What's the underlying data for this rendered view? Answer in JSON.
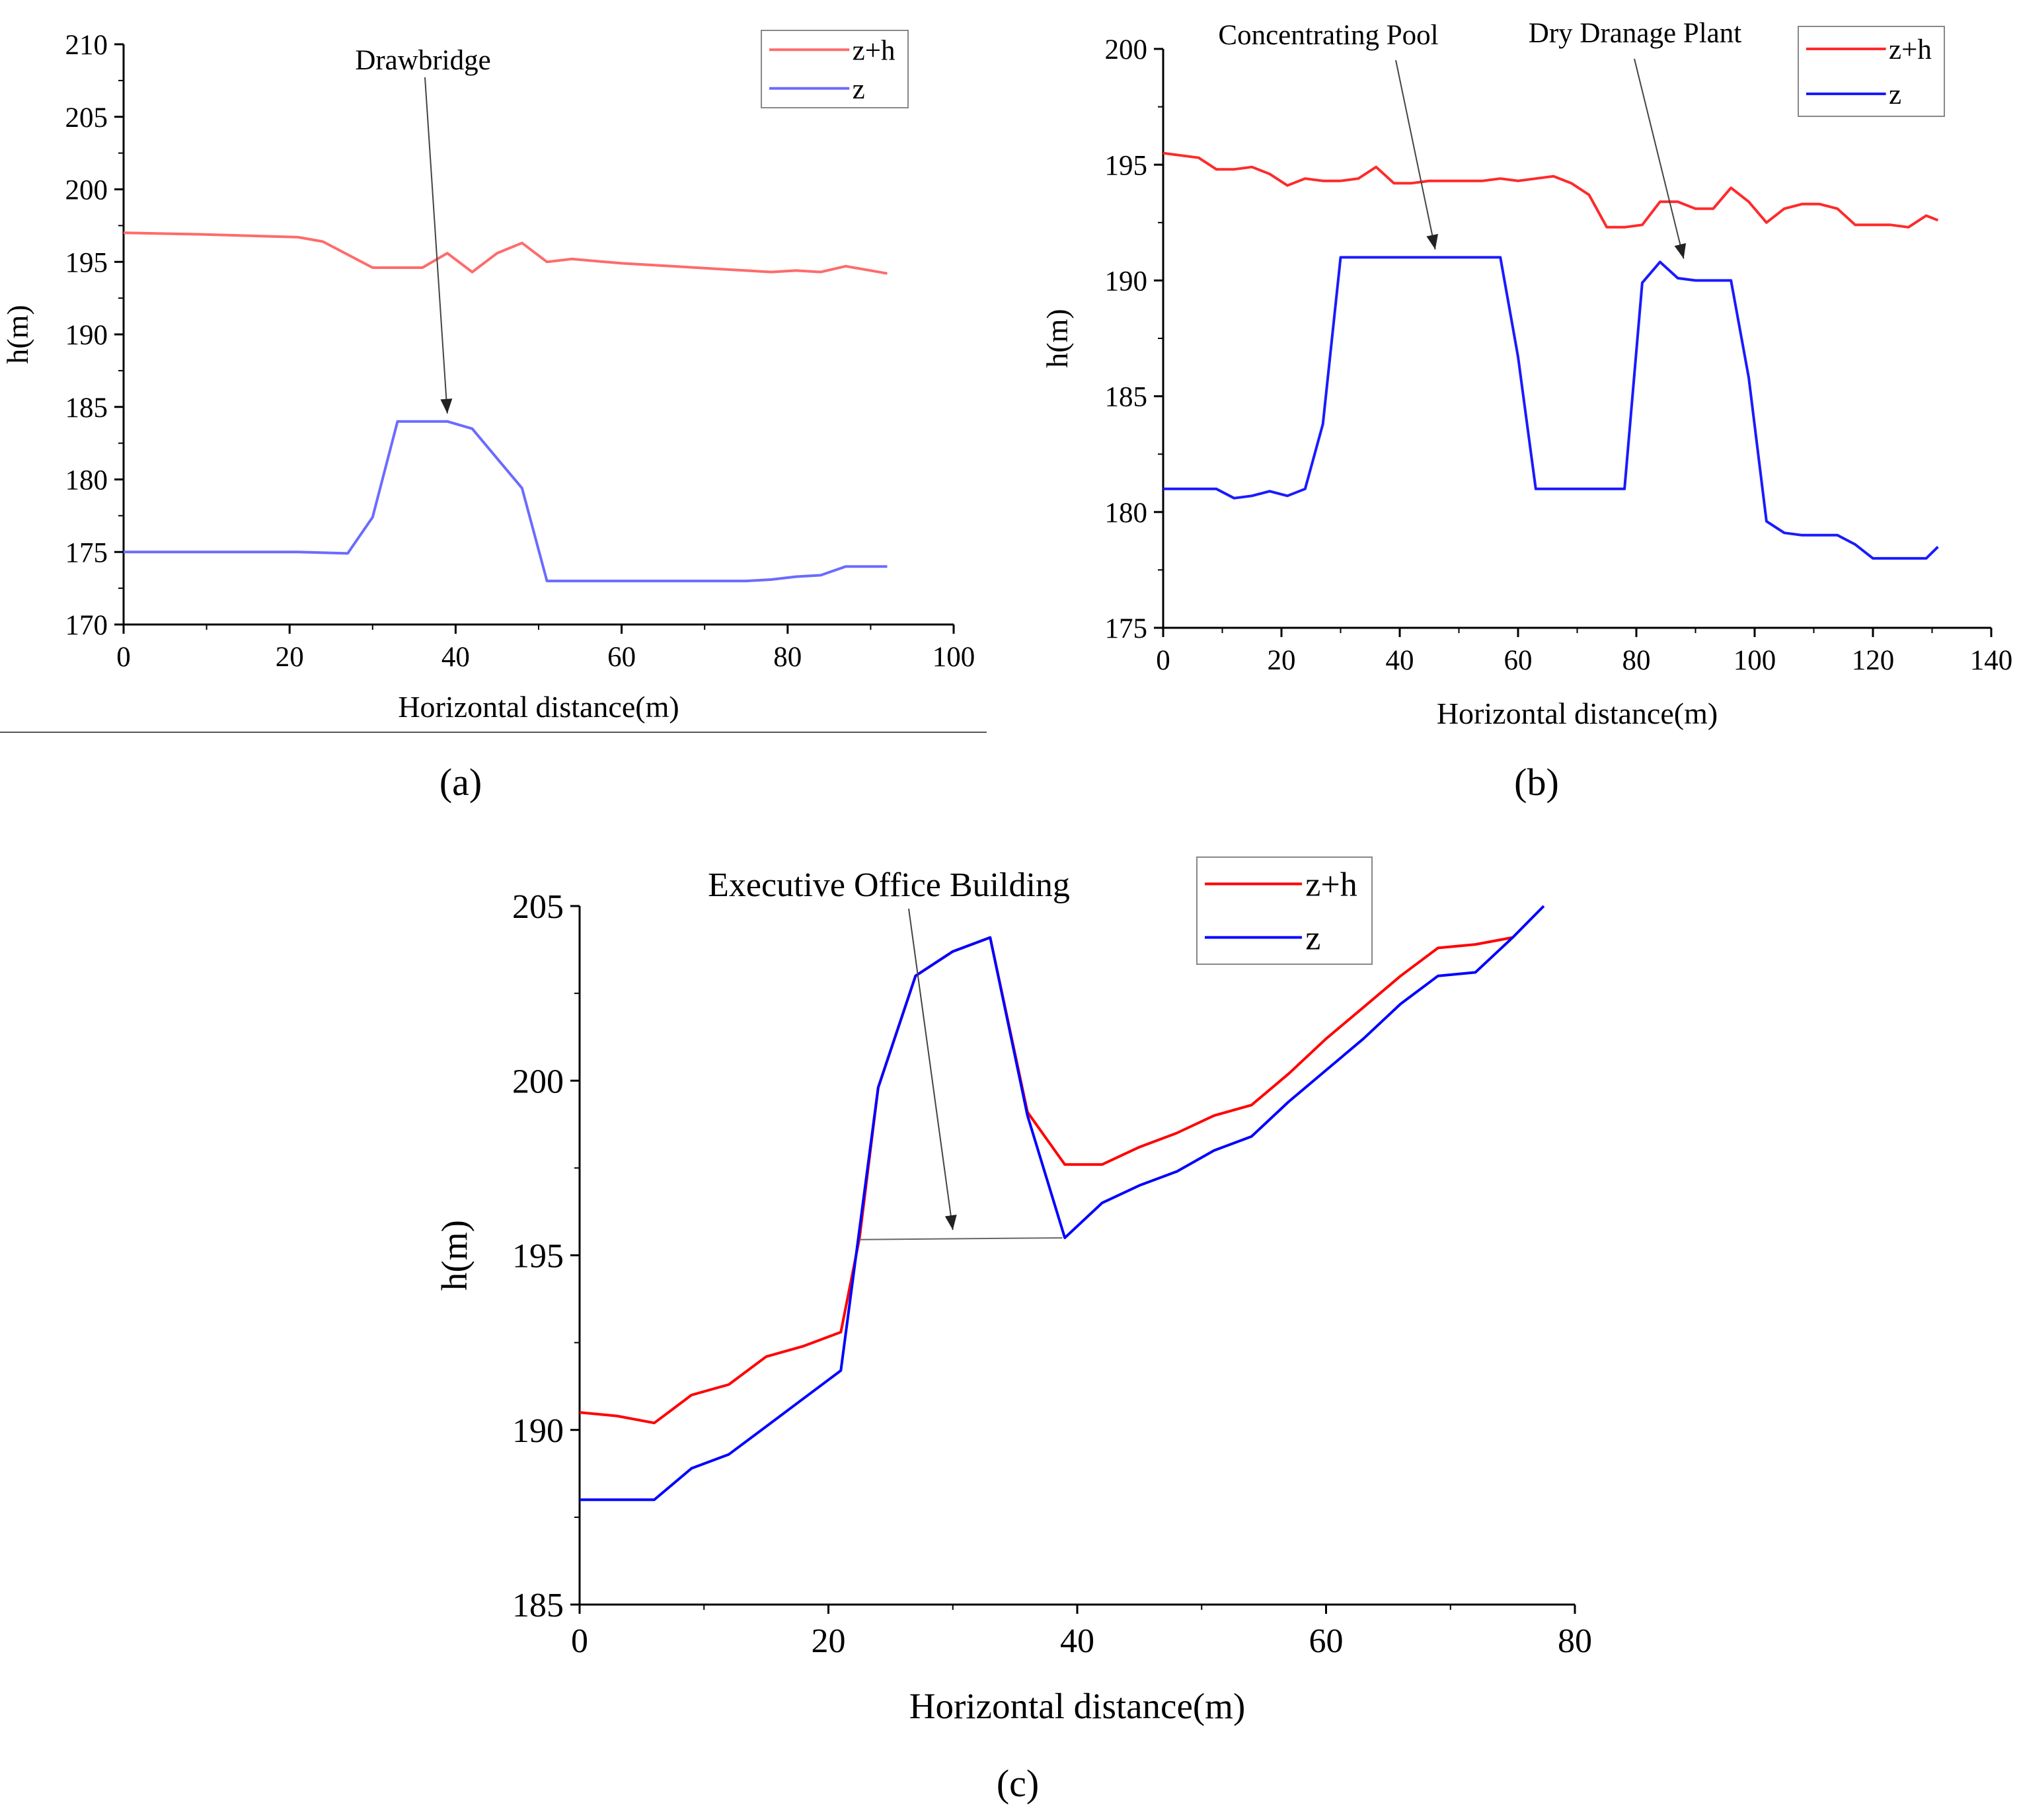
{
  "figure": {
    "captions": [
      "(a)",
      "(b)",
      "(c)"
    ]
  },
  "chart_data": [
    {
      "id": "a",
      "type": "line",
      "caption": "(a)",
      "xlabel": "Horizontal distance(m)",
      "ylabel": "h(m)",
      "xlim": [
        0,
        100
      ],
      "ylim": [
        170,
        210
      ],
      "xticks": [
        0,
        20,
        40,
        60,
        80,
        100
      ],
      "yticks": [
        170,
        175,
        180,
        185,
        190,
        195,
        200,
        205,
        210
      ],
      "legend": [
        "z+h",
        "z"
      ],
      "legend_position": "top-right",
      "series": [
        {
          "name": "z+h",
          "color": "#ff6b6b",
          "x": [
            0,
            9,
            21,
            24,
            30,
            36,
            39,
            42,
            45,
            48,
            51,
            54,
            60,
            66,
            72,
            78,
            81,
            84,
            87,
            92
          ],
          "y": [
            197.0,
            196.9,
            196.7,
            196.4,
            194.6,
            194.6,
            195.6,
            194.3,
            195.6,
            196.3,
            195.0,
            195.2,
            194.9,
            194.7,
            194.5,
            194.3,
            194.4,
            194.3,
            194.7,
            194.2
          ]
        },
        {
          "name": "z",
          "color": "#6b6bff",
          "x": [
            0,
            9,
            21,
            27,
            30,
            33,
            39,
            42,
            48,
            51,
            57,
            69,
            75,
            78,
            81,
            84,
            87,
            92
          ],
          "y": [
            175.0,
            175.0,
            175.0,
            174.9,
            177.4,
            184.0,
            184.0,
            183.5,
            179.4,
            173.0,
            173.0,
            173.0,
            173.0,
            173.1,
            173.3,
            173.4,
            174.0,
            174.0
          ]
        }
      ],
      "annotations": [
        {
          "text": "Drawbridge",
          "x": 39,
          "y": 184.0
        }
      ]
    },
    {
      "id": "b",
      "type": "line",
      "caption": "(b)",
      "xlabel": "Horizontal distance(m)",
      "ylabel": "h(m)",
      "xlim": [
        0,
        140
      ],
      "ylim": [
        175,
        200
      ],
      "xticks": [
        0,
        20,
        40,
        60,
        80,
        100,
        120,
        140
      ],
      "yticks": [
        175,
        180,
        185,
        190,
        195,
        200
      ],
      "legend": [
        "z+h",
        "z"
      ],
      "legend_position": "top-right",
      "series": [
        {
          "name": "z+h",
          "color": "#ff2a2a",
          "x": [
            0,
            3,
            6,
            9,
            12,
            15,
            18,
            21,
            24,
            27,
            30,
            33,
            36,
            39,
            42,
            45,
            48,
            51,
            54,
            57,
            60,
            63,
            66,
            69,
            72,
            75,
            78,
            81,
            84,
            87,
            90,
            93,
            96,
            99,
            102,
            105,
            108,
            111,
            114,
            117,
            120,
            123,
            126,
            129,
            131
          ],
          "y": [
            195.5,
            195.4,
            195.3,
            194.8,
            194.8,
            194.9,
            194.6,
            194.1,
            194.4,
            194.3,
            194.3,
            194.4,
            194.9,
            194.2,
            194.2,
            194.3,
            194.3,
            194.3,
            194.3,
            194.4,
            194.3,
            194.4,
            194.5,
            194.2,
            193.7,
            192.3,
            192.3,
            192.4,
            193.4,
            193.4,
            193.1,
            193.1,
            194.0,
            193.4,
            192.5,
            193.1,
            193.3,
            193.3,
            193.1,
            192.4,
            192.4,
            192.4,
            192.3,
            192.8,
            192.6
          ]
        },
        {
          "name": "z",
          "color": "#1a1aff",
          "x": [
            0,
            3,
            6,
            9,
            12,
            15,
            18,
            21,
            24,
            27,
            30,
            33,
            36,
            42,
            48,
            54,
            57,
            60,
            63,
            66,
            69,
            72,
            75,
            78,
            81,
            84,
            87,
            90,
            93,
            96,
            99,
            102,
            105,
            108,
            111,
            114,
            117,
            120,
            123,
            126,
            129,
            131
          ],
          "y": [
            181.0,
            181.0,
            181.0,
            181.0,
            180.6,
            180.7,
            180.9,
            180.7,
            181.0,
            183.8,
            191.0,
            191.0,
            191.0,
            191.0,
            191.0,
            191.0,
            191.0,
            186.7,
            181.0,
            181.0,
            181.0,
            181.0,
            181.0,
            181.0,
            189.9,
            190.8,
            190.1,
            190.0,
            190.0,
            190.0,
            185.8,
            179.6,
            179.1,
            179.0,
            179.0,
            179.0,
            178.6,
            178.0,
            178.0,
            178.0,
            178.0,
            178.5
          ]
        }
      ],
      "annotations": [
        {
          "text": "Concentrating Pool",
          "x": 46,
          "y": 191.0
        },
        {
          "text": "Dry Dranage Plant",
          "x": 88,
          "y": 190.6
        }
      ]
    },
    {
      "id": "c",
      "type": "line",
      "caption": "(c)",
      "xlabel": "Horizontal distance(m)",
      "ylabel": "h(m)",
      "xlim": [
        0,
        80
      ],
      "ylim": [
        185,
        205
      ],
      "xticks": [
        0,
        20,
        40,
        60,
        80
      ],
      "yticks": [
        185,
        190,
        195,
        200,
        205
      ],
      "legend": [
        "z+h",
        "z"
      ],
      "legend_position": "top-right",
      "series": [
        {
          "name": "z+h",
          "color": "#ff0000",
          "x": [
            0,
            3,
            6,
            9,
            12,
            15,
            18,
            21,
            22.5,
            24,
            27,
            30,
            33,
            36,
            39,
            42,
            45,
            48,
            51,
            54,
            57,
            60,
            63,
            66,
            69,
            72,
            75
          ],
          "y": [
            190.5,
            190.4,
            190.2,
            191.0,
            191.3,
            192.1,
            192.4,
            192.8,
            195.5,
            199.8,
            203.0,
            203.7,
            204.1,
            199.1,
            197.6,
            197.6,
            198.1,
            198.5,
            199.0,
            199.3,
            200.2,
            201.2,
            202.1,
            203.0,
            203.8,
            203.9,
            204.1
          ]
        },
        {
          "name": "z",
          "color": "#0000ff",
          "x": [
            0,
            3,
            6,
            9,
            12,
            15,
            18,
            21,
            24,
            27,
            30,
            33,
            36,
            39,
            42,
            45,
            48,
            51,
            54,
            57,
            60,
            63,
            66,
            69,
            72,
            75,
            77.5
          ],
          "y": [
            188.0,
            188.0,
            188.0,
            188.9,
            189.3,
            190.1,
            190.9,
            191.7,
            199.8,
            203.0,
            203.7,
            204.1,
            199.0,
            195.5,
            196.5,
            197.0,
            197.4,
            198.0,
            198.4,
            199.4,
            200.3,
            201.2,
            202.2,
            203.0,
            203.1,
            204.1,
            205.0
          ]
        }
      ],
      "annotations": [
        {
          "text": "Executive Office Building",
          "x": 30,
          "y": 195.5
        }
      ]
    }
  ]
}
